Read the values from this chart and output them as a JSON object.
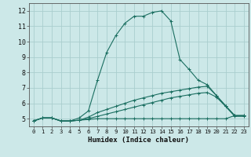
{
  "title": "",
  "xlabel": "Humidex (Indice chaleur)",
  "background_color": "#cce8e8",
  "grid_color": "#aacece",
  "line_color": "#1a6e60",
  "xlim": [
    -0.5,
    23.5
  ],
  "ylim": [
    4.5,
    12.5
  ],
  "xticks": [
    0,
    1,
    2,
    3,
    4,
    5,
    6,
    7,
    8,
    9,
    10,
    11,
    12,
    13,
    14,
    15,
    16,
    17,
    18,
    19,
    20,
    21,
    22,
    23
  ],
  "yticks": [
    5,
    6,
    7,
    8,
    9,
    10,
    11,
    12
  ],
  "series": [
    {
      "x": [
        0,
        1,
        2,
        3,
        4,
        5,
        6,
        7,
        8,
        9,
        10,
        11,
        12,
        13,
        14,
        15,
        16,
        17,
        18,
        19,
        20,
        21,
        22,
        23
      ],
      "y": [
        4.85,
        5.05,
        5.05,
        4.85,
        4.85,
        5.05,
        5.5,
        7.5,
        9.3,
        10.4,
        11.2,
        11.65,
        11.65,
        11.9,
        12.0,
        11.35,
        8.85,
        8.2,
        7.5,
        7.2,
        6.5,
        5.8,
        5.15,
        5.15
      ]
    },
    {
      "x": [
        0,
        1,
        2,
        3,
        4,
        5,
        6,
        7,
        8,
        9,
        10,
        11,
        12,
        13,
        14,
        15,
        16,
        17,
        18,
        19,
        20,
        21,
        22,
        23
      ],
      "y": [
        4.85,
        5.05,
        5.05,
        4.85,
        4.85,
        4.9,
        5.1,
        5.4,
        5.6,
        5.8,
        6.0,
        6.2,
        6.35,
        6.5,
        6.65,
        6.75,
        6.85,
        6.95,
        7.05,
        7.1,
        6.5,
        5.85,
        5.2,
        5.2
      ]
    },
    {
      "x": [
        0,
        1,
        2,
        3,
        4,
        5,
        6,
        7,
        8,
        9,
        10,
        11,
        12,
        13,
        14,
        15,
        16,
        17,
        18,
        19,
        20,
        21,
        22,
        23
      ],
      "y": [
        4.85,
        5.05,
        5.05,
        4.85,
        4.85,
        4.9,
        5.0,
        5.15,
        5.3,
        5.45,
        5.6,
        5.75,
        5.9,
        6.05,
        6.2,
        6.35,
        6.45,
        6.55,
        6.65,
        6.7,
        6.4,
        5.8,
        5.2,
        5.2
      ]
    },
    {
      "x": [
        0,
        1,
        2,
        3,
        4,
        5,
        6,
        7,
        8,
        9,
        10,
        11,
        12,
        13,
        14,
        15,
        16,
        17,
        18,
        19,
        20,
        21,
        22,
        23
      ],
      "y": [
        4.85,
        5.05,
        5.05,
        4.85,
        4.85,
        4.9,
        4.95,
        5.0,
        5.0,
        5.0,
        5.0,
        5.0,
        5.0,
        5.0,
        5.0,
        5.0,
        5.0,
        5.0,
        5.0,
        5.0,
        5.0,
        5.0,
        5.2,
        5.2
      ]
    }
  ],
  "marker": "+",
  "markersize": 3,
  "linewidth": 0.8
}
